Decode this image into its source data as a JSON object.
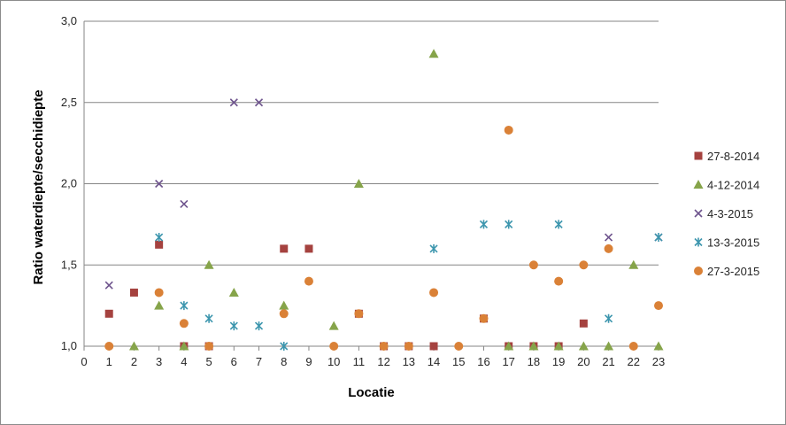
{
  "chart_data": {
    "type": "scatter",
    "title": "",
    "xlabel": "Locatie",
    "ylabel": "Ratio waterdiepte/secchidiepte",
    "xlim": [
      0,
      23
    ],
    "ylim": [
      1.0,
      3.0
    ],
    "x_ticks": [
      "0",
      "1",
      "2",
      "3",
      "4",
      "5",
      "6",
      "7",
      "8",
      "9",
      "10",
      "11",
      "12",
      "13",
      "14",
      "15",
      "16",
      "17",
      "18",
      "19",
      "20",
      "21",
      "22",
      "23"
    ],
    "y_ticks": [
      {
        "value": 1.0,
        "label": "1,0"
      },
      {
        "value": 1.5,
        "label": "1,5"
      },
      {
        "value": 2.0,
        "label": "2,0"
      },
      {
        "value": 2.5,
        "label": "2,5"
      },
      {
        "value": 3.0,
        "label": "3,0"
      }
    ],
    "grid": true,
    "legend_position": "right",
    "series": [
      {
        "name": "27-8-2014",
        "marker": "square",
        "color": "#A5423F",
        "points": [
          [
            1,
            1.2
          ],
          [
            2,
            1.33
          ],
          [
            3,
            1.625
          ],
          [
            4,
            1.0
          ],
          [
            5,
            1.0
          ],
          [
            8,
            1.6
          ],
          [
            9,
            1.6
          ],
          [
            11,
            1.2
          ],
          [
            12,
            1.0
          ],
          [
            13,
            1.0
          ],
          [
            14,
            1.0
          ],
          [
            16,
            1.17
          ],
          [
            17,
            1.0
          ],
          [
            18,
            1.0
          ],
          [
            19,
            1.0
          ],
          [
            20,
            1.14
          ]
        ]
      },
      {
        "name": "4-12-2014",
        "marker": "triangle",
        "color": "#86A44A",
        "points": [
          [
            2,
            1.0
          ],
          [
            3,
            1.25
          ],
          [
            4,
            1.0
          ],
          [
            5,
            1.5
          ],
          [
            6,
            1.33
          ],
          [
            8,
            1.25
          ],
          [
            10,
            1.125
          ],
          [
            11,
            2.0
          ],
          [
            14,
            2.8
          ],
          [
            17,
            1.0
          ],
          [
            18,
            1.0
          ],
          [
            19,
            1.0
          ],
          [
            20,
            1.0
          ],
          [
            21,
            1.0
          ],
          [
            22,
            1.5
          ],
          [
            23,
            1.0
          ]
        ]
      },
      {
        "name": "4-3-2015",
        "marker": "x",
        "color": "#6E548D",
        "points": [
          [
            1,
            1.375
          ],
          [
            3,
            2.0
          ],
          [
            4,
            1.875
          ],
          [
            6,
            2.5
          ],
          [
            7,
            2.5
          ],
          [
            21,
            1.67
          ],
          [
            23,
            1.67
          ]
        ]
      },
      {
        "name": "13-3-2015",
        "marker": "star",
        "color": "#3D96AE",
        "points": [
          [
            3,
            1.67
          ],
          [
            4,
            1.25
          ],
          [
            5,
            1.17
          ],
          [
            6,
            1.125
          ],
          [
            7,
            1.125
          ],
          [
            8,
            1.0
          ],
          [
            14,
            1.6
          ],
          [
            16,
            1.75
          ],
          [
            17,
            1.75
          ],
          [
            19,
            1.75
          ],
          [
            21,
            1.17
          ],
          [
            23,
            1.67
          ]
        ]
      },
      {
        "name": "27-3-2015",
        "marker": "circle",
        "color": "#DA8137",
        "points": [
          [
            1,
            1.0
          ],
          [
            3,
            1.33
          ],
          [
            4,
            1.14
          ],
          [
            5,
            1.0
          ],
          [
            8,
            1.2
          ],
          [
            9,
            1.4
          ],
          [
            10,
            1.0
          ],
          [
            11,
            1.2
          ],
          [
            12,
            1.0
          ],
          [
            13,
            1.0
          ],
          [
            14,
            1.33
          ],
          [
            15,
            1.0
          ],
          [
            16,
            1.17
          ],
          [
            17,
            2.33
          ],
          [
            18,
            1.5
          ],
          [
            19,
            1.4
          ],
          [
            20,
            1.5
          ],
          [
            21,
            1.6
          ],
          [
            22,
            1.0
          ],
          [
            23,
            1.25
          ]
        ]
      }
    ]
  }
}
